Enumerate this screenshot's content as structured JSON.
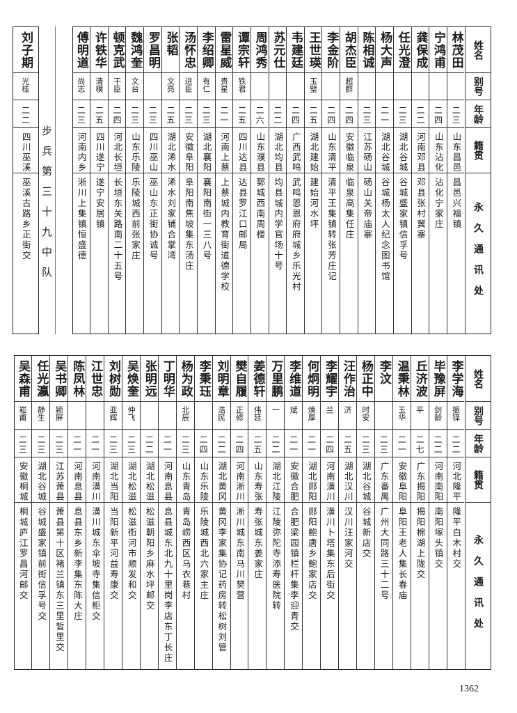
{
  "headers": {
    "name": "姓名",
    "alias": "别号",
    "age": "年龄",
    "origin": "籍贯",
    "address": "永久通讯处"
  },
  "unit_label": "步兵第三十九中队",
  "page_number": "1362",
  "top_rows": [
    {
      "name": "林茂田",
      "alias": "",
      "age": "二三",
      "origin": "山东昌邑",
      "address": "昌邑兴福镇"
    },
    {
      "name": "宁鸿甫",
      "alias": "",
      "age": "二四",
      "origin": "山东沾化",
      "address": "沾化宁家庄"
    },
    {
      "name": "龚保成",
      "alias": "",
      "age": "二二",
      "origin": "河南邓县",
      "address": "邓县张村冀寨"
    },
    {
      "name": "任光澄",
      "alias": "",
      "age": "二三",
      "origin": "湖北谷城",
      "address": "谷城盛家镇信孚号"
    },
    {
      "name": "杨大声",
      "alias": "",
      "age": "二一",
      "origin": "湖北谷城",
      "address": "谷城杨太人纪念图书馆"
    },
    {
      "name": "陈相诚",
      "alias": "",
      "age": "二三",
      "origin": "江苏砀山",
      "address": "砀山关帝庙寨"
    },
    {
      "name": "胡杰臣",
      "alias": "超群",
      "age": "二四",
      "origin": "安徽临泉",
      "address": "临泉高集任庄"
    },
    {
      "name": "李金阶",
      "alias": "",
      "age": "二四",
      "origin": "山东清平",
      "address": "清平王集镇转张芳庄记"
    },
    {
      "name": "王世瑛",
      "alias": "玉璧",
      "age": "二五",
      "origin": "湖北建始",
      "address": "建始河水坪"
    },
    {
      "name": "韦建廷",
      "alias": "",
      "age": "二四",
      "origin": "广西武鸣",
      "address": "武鸣恩恩府府城乡乐光村"
    },
    {
      "name": "苏元仕",
      "alias": "",
      "age": "二二",
      "origin": "湖北均县",
      "address": "均县城内学官场十号"
    },
    {
      "name": "周鸿秀",
      "alias": "",
      "age": "二六",
      "origin": "山东濮县",
      "address": "鄄城西南周楼"
    },
    {
      "name": "谭宗轩",
      "alias": "铁君",
      "age": "二五",
      "origin": "四川达县",
      "address": "达县罗江口邮局"
    },
    {
      "name": "雷星威",
      "alias": "贵星",
      "age": "二一",
      "origin": "河南上蔡",
      "address": "上蔡城内教育街道德学校"
    },
    {
      "name": "李绍卿",
      "alias": "有仁",
      "age": "二三",
      "origin": "湖北襄阳",
      "address": "襄阳南街一三八号"
    },
    {
      "name": "汤怀忠",
      "alias": "进臣",
      "age": "二三",
      "origin": "安徽阜阳",
      "address": "阜阳南焦坡集东汤庄"
    },
    {
      "name": "张韬",
      "alias": "文亮",
      "age": "二五",
      "origin": "湖北浠水",
      "address": "浠水刘家铺合掌湾"
    },
    {
      "name": "罗昌明",
      "alias": "",
      "age": "二三",
      "origin": "四川巫山",
      "address": "巫山东正街协诚号"
    },
    {
      "name": "魏鸿奎",
      "alias": "文台",
      "age": "二三",
      "origin": "山东乐陵",
      "address": "乐陵城西前张家庄"
    },
    {
      "name": "顿克武",
      "alias": "干臣",
      "age": "二四",
      "origin": "河北长垣",
      "address": "长垣东关路南二十五号"
    },
    {
      "name": "许铁华",
      "alias": "清模",
      "age": "二五",
      "origin": "四川遂宁",
      "address": "遂宁安居镇"
    },
    {
      "name": "傅明道",
      "alias": "尚志",
      "age": "二三",
      "origin": "河南内乡",
      "address": "淅川上集镇恒盛德"
    }
  ],
  "left_row": {
    "name": "刘子期",
    "alias": "光桂",
    "age": "二二",
    "origin": "四川巫溪",
    "address": "巫溪古路乡正街交"
  },
  "bottom_rows": [
    {
      "name": "李学海",
      "alias": "振铎",
      "age": "二二",
      "origin": "河北隆平",
      "address": "隆平白木村交"
    },
    {
      "name": "毕豫屏",
      "alias": "剑龄",
      "age": "二二",
      "origin": "河南南阳",
      "address": "南阳塚头镇交"
    },
    {
      "name": "丘济波",
      "alias": "平",
      "age": "二七",
      "origin": "广东揭阳",
      "address": "揭阳棉湖上陇交"
    },
    {
      "name": "温秉林",
      "alias": "玉华",
      "age": "二一",
      "origin": "安徽阜阳",
      "address": "阜阳王老人集长春庙"
    },
    {
      "name": "李汶",
      "alias": "",
      "age": "二三",
      "origin": "广东番禺",
      "address": "广州大同路三十二号"
    },
    {
      "name": "杨正中",
      "alias": "时安",
      "age": "二三",
      "origin": "湖北谷城",
      "address": "谷城新店交"
    },
    {
      "name": "汪作治",
      "alias": "济",
      "age": "二五",
      "origin": "湖北汉川",
      "address": "汉川汪家河交"
    },
    {
      "name": "李耀宇",
      "alias": "兰",
      "age": "二四",
      "origin": "河南潢川",
      "address": "潢川卜塔集东后街交"
    },
    {
      "name": "何炯明",
      "alias": "焕厚",
      "age": "二一",
      "origin": "湖北郧阳",
      "address": "郧阳鲍唐乡鲍家店交"
    },
    {
      "name": "李维道",
      "alias": "斌",
      "age": "二一",
      "origin": "安徽合肥",
      "address": "合肥梁园镇栏杆集李迎青交"
    },
    {
      "name": "万里鹏",
      "alias": "一",
      "age": "二二",
      "origin": "湖北江陵",
      "address": "江陵弥陀寺添寿医院转"
    },
    {
      "name": "姜德轩",
      "alias": "伟廷",
      "age": "二五",
      "origin": "山东寿张",
      "address": "寿张城东姜家庄"
    },
    {
      "name": "樊自履",
      "alias": "正修",
      "age": "二四",
      "origin": "河南淅川",
      "address": "淅川城东南马川樊营"
    },
    {
      "name": "刘明章",
      "alias": "浩民",
      "age": "二二",
      "origin": "湖北黄冈",
      "address": "黄冈李家集协记药房转松树刘管"
    },
    {
      "name": "李秉珏",
      "alias": "",
      "age": "二四",
      "origin": "山东乐陵",
      "address": "乐陵城西北六家主庄"
    },
    {
      "name": "杨为政",
      "alias": "北辰",
      "age": "二三",
      "origin": "山东青岛",
      "address": "青岛崂西区乌衣巷村"
    },
    {
      "name": "丁明华",
      "alias": "",
      "age": "二一",
      "origin": "河南息县",
      "address": "息县城东北九十里岗李店东丁长庄"
    },
    {
      "name": "张明远",
      "alias": "",
      "age": "二二",
      "origin": "湖北松滋",
      "address": "松滋朝阳乡麻水坪邮交"
    },
    {
      "name": "吴焕奎",
      "alias": "仲飞",
      "age": "二三",
      "origin": "湖北松滋",
      "address": "松滋街河市顺发和交"
    },
    {
      "name": "刘树勋",
      "alias": "亚辉",
      "age": "二三",
      "origin": "湖北当阳",
      "address": "当阳新平河益寿康交"
    },
    {
      "name": "江世忠",
      "alias": "",
      "age": "二一",
      "origin": "河南潢川",
      "address": "潢川城东伞坡寺集信柜交"
    },
    {
      "name": "陈凤林",
      "alias": "",
      "age": "二一",
      "origin": "河南息县",
      "address": "息县东乡新李集东陈大庄"
    },
    {
      "name": "吴书卿",
      "alias": "颍屏",
      "age": "二三",
      "origin": "江苏萧县",
      "address": "萧县第十区褚兰镇东三里晳里交"
    },
    {
      "name": "任光瀛",
      "alias": "静生",
      "age": "二三",
      "origin": "湖北谷城",
      "address": "谷城盛家镇前街信孚号交"
    },
    {
      "name": "吴森甫",
      "alias": "崧甫",
      "age": "二三",
      "origin": "安徽桐城",
      "address": "桐城庐江罗昌河邮交"
    }
  ]
}
